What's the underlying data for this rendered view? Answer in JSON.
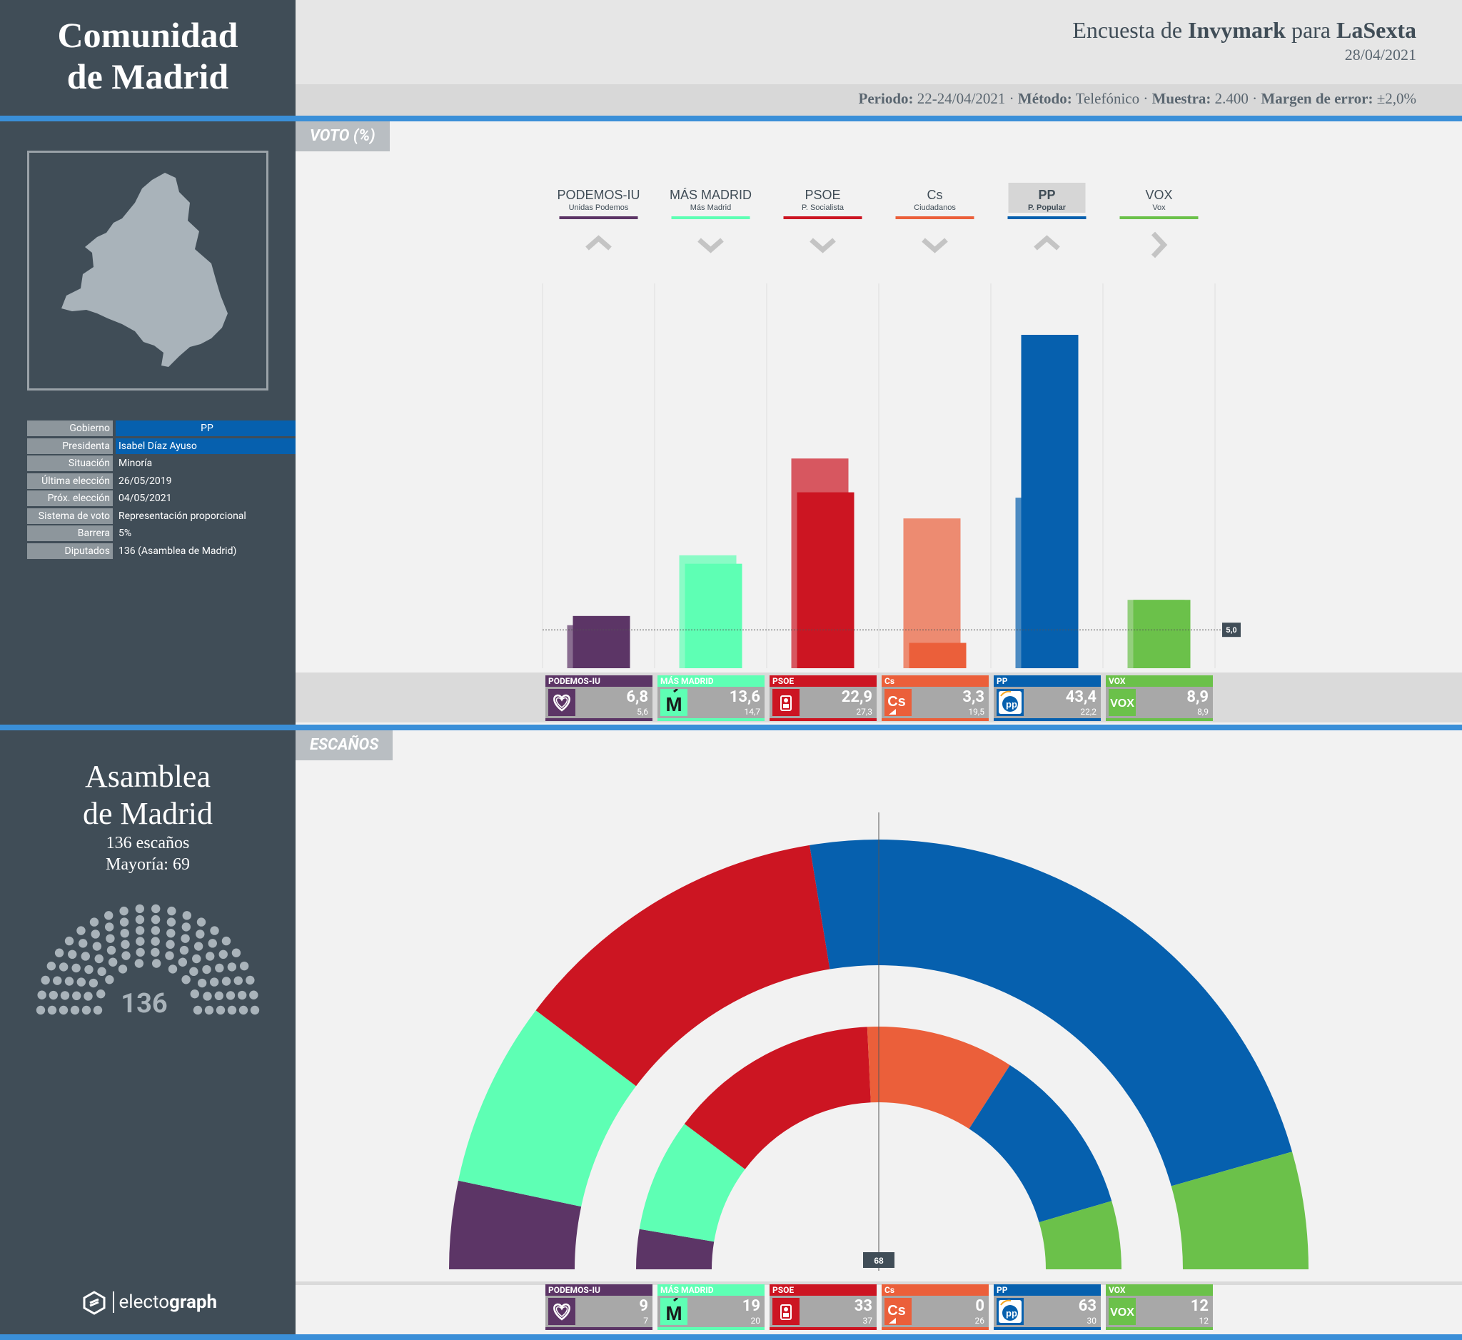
{
  "header": {
    "title_line1": "Comunidad",
    "title_line2": "de Madrid",
    "poll_prefix": "Encuesta de ",
    "pollster": "Invymark",
    "poll_mid": " para ",
    "client": "LaSexta",
    "date": "28/04/2021",
    "periodo_label": "Periodo:",
    "periodo_value": "22-24/04/2021",
    "metodo_label": "Método:",
    "metodo_value": "Telefónico",
    "muestra_label": "Muestra:",
    "muestra_value": "2.400",
    "margen_label": "Margen de error:",
    "margen_value": "±2,0%",
    "sep": "·"
  },
  "sidebar": {
    "info": [
      {
        "key": "Gobierno",
        "value": "PP",
        "highlight": true
      },
      {
        "key": "Presidenta",
        "value": "Isabel Díaz Ayuso",
        "highlight": true
      },
      {
        "key": "Situación",
        "value": "Minoría",
        "highlight": false
      },
      {
        "key": "Última elección",
        "value": "26/05/2019",
        "highlight": false
      },
      {
        "key": "Próx. elección",
        "value": "04/05/2021",
        "highlight": false
      },
      {
        "key": "Sistema de voto",
        "value": "Representación proporcional",
        "highlight": false
      },
      {
        "key": "Barrera",
        "value": "5%",
        "highlight": false
      },
      {
        "key": "Diputados",
        "value": "136 (Asamblea de Madrid)",
        "highlight": false
      }
    ],
    "assembly_line1": "Asamblea",
    "assembly_line2": "de Madrid",
    "seats_text": "136 escaños",
    "majority_text": "Mayoría: 69",
    "hemicycle_total": "136",
    "brand_light": "electo",
    "brand_bold": "graph"
  },
  "sections": {
    "voto_label": "VOTO (%)",
    "escanos_label": "ESCAÑOS"
  },
  "colors": {
    "PODEMOS-IU": "#5c3566",
    "MÁS MADRID": "#5effb4",
    "PSOE": "#cc1522",
    "Cs": "#eb5f3a",
    "PP": "#0660ae",
    "VOX": "#6bc14a",
    "accent": "#3a8fd8",
    "sidebar": "#404d57"
  },
  "chart_data": [
    {
      "type": "bar",
      "title": "VOTO (%)",
      "categories": [
        "PODEMOS-IU",
        "MÁS MADRID",
        "PSOE",
        "Cs",
        "PP",
        "VOX"
      ],
      "party_full_names": [
        "Unidas Podemos",
        "Más Madrid",
        "P. Socialista",
        "Ciudadanos",
        "P. Popular",
        "Vox"
      ],
      "trend": [
        "up",
        "down",
        "down",
        "down",
        "up",
        "flat"
      ],
      "series": [
        {
          "name": "Encuesta",
          "values": [
            6.8,
            13.6,
            22.9,
            3.3,
            43.4,
            8.9
          ]
        },
        {
          "name": "Anterior",
          "values": [
            5.6,
            14.7,
            27.3,
            19.5,
            22.2,
            8.9
          ]
        }
      ],
      "threshold": 5.0,
      "threshold_label": "5,0",
      "value_labels": [
        "6,8",
        "13,6",
        "22,9",
        "3,3",
        "43,4",
        "8,9"
      ],
      "previous_labels": [
        "5,6",
        "14,7",
        "27,3",
        "19,5",
        "22,2",
        "8,9"
      ],
      "ylim": [
        0,
        50
      ]
    },
    {
      "type": "pie",
      "title": "ESCAÑOS",
      "categories": [
        "PODEMOS-IU",
        "MÁS MADRID",
        "PSOE",
        "Cs",
        "PP",
        "VOX"
      ],
      "series": [
        {
          "name": "Encuesta",
          "values": [
            9,
            19,
            33,
            0,
            63,
            12
          ]
        },
        {
          "name": "Anterior",
          "values": [
            7,
            20,
            37,
            26,
            30,
            12
          ]
        }
      ],
      "majority_marker": "68",
      "total": 136
    }
  ]
}
